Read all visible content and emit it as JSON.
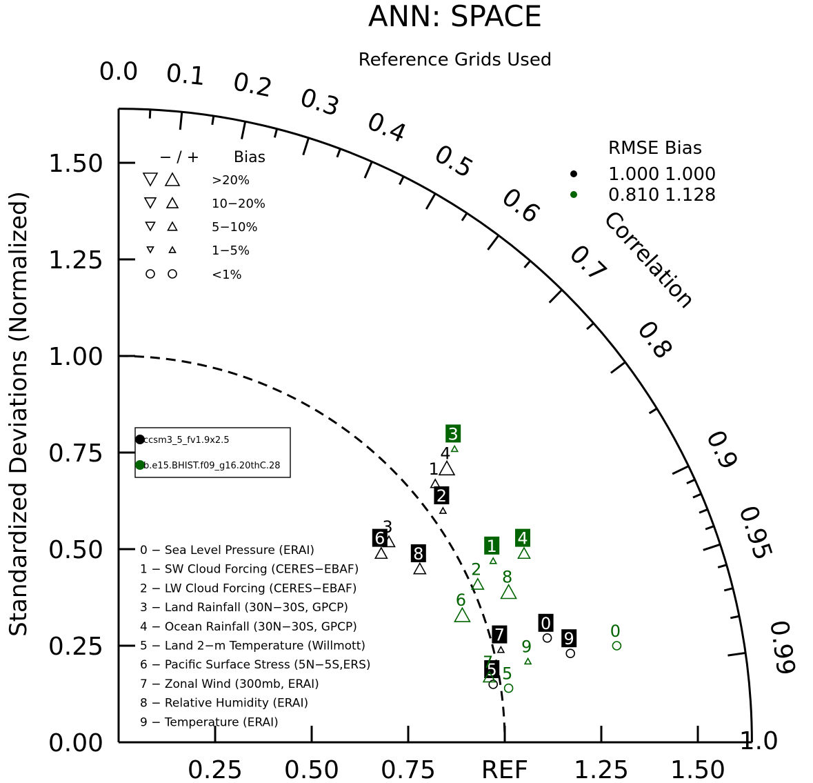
{
  "chart_data": {
    "type": "scatter",
    "title": "ANN: SPACE",
    "subtitle": "Reference Grids Used",
    "ylabel": "Standardized Deviations (Normalized)",
    "arc_label": "Correlation",
    "ref_label": "REF",
    "ylim": [
      0,
      1.65
    ],
    "xlim": [
      0,
      1.65
    ],
    "y_tick_labels": [
      "0.00",
      "0.25",
      "0.50",
      "0.75",
      "1.00",
      "1.25",
      "1.50"
    ],
    "x_tick_labels": [
      "0.25",
      "0.50",
      "0.75",
      "REF",
      "1.25",
      "1.50"
    ],
    "correlation_ticks": [
      "0.0",
      "0.1",
      "0.2",
      "0.3",
      "0.4",
      "0.5",
      "0.6",
      "0.7",
      "0.8",
      "0.9",
      "0.95",
      "0.99",
      "1.0"
    ],
    "bias_legend": {
      "header_sign": "− / +",
      "header_label": "Bias",
      "rows": [
        "&gt;20%",
        "10−20%",
        "5−10%",
        "1−5%",
        "&lt;1%"
      ]
    },
    "stats_legend": {
      "header": "RMSE  Bias",
      "rows": [
        {
          "rmse": "1.000",
          "bias": "1.000",
          "color": "#000000"
        },
        {
          "rmse": "0.810",
          "bias": "1.128",
          "color": "#006400"
        }
      ]
    },
    "case_legend": [
      {
        "name": "ccsm3_5_fv1.9x2.5",
        "color": "#000000"
      },
      {
        "name": "b.e15.BHIST.f09_g16.20thC.28",
        "color": "#006400"
      }
    ],
    "variables": [
      "0 − Sea Level Pressure (ERAI)",
      "1 − SW Cloud Forcing (CERES−EBAF)",
      "2 − LW Cloud Forcing (CERES−EBAF)",
      "3 − Land Rainfall (30N−30S, GPCP)",
      "4 − Ocean Rainfall (30N−30S, GPCP)",
      "5 − Land 2−m Temperature (Willmott)",
      "6 − Pacific Surface Stress (5N−5S,ERS)",
      "7 − Zonal Wind (300mb, ERAI)",
      "8 − Relative Humidity (ERAI)",
      "9 − Temperature (ERAI)"
    ],
    "series": [
      {
        "name": "ccsm3_5_fv1.9x2.5",
        "color": "#000000",
        "points": [
          {
            "label": "0",
            "x": 1.11,
            "y": 0.27,
            "marker": "circle",
            "boxed": true
          },
          {
            "label": "1",
            "x": 0.82,
            "y": 0.67,
            "marker": "triangle-up",
            "size": "small",
            "boxed": false
          },
          {
            "label": "2",
            "x": 0.84,
            "y": 0.6,
            "marker": "triangle-up",
            "size": "tiny",
            "boxed": true
          },
          {
            "label": "3",
            "x": 0.7,
            "y": 0.52,
            "marker": "triangle-up",
            "size": "medium",
            "boxed": false
          },
          {
            "label": "4",
            "x": 0.85,
            "y": 0.71,
            "marker": "triangle-up",
            "size": "large",
            "boxed": false
          },
          {
            "label": "5",
            "x": 0.97,
            "y": 0.15,
            "marker": "circle",
            "boxed": true
          },
          {
            "label": "6",
            "x": 0.68,
            "y": 0.49,
            "marker": "triangle-up",
            "size": "medium",
            "boxed": true
          },
          {
            "label": "7",
            "x": 0.99,
            "y": 0.24,
            "marker": "triangle-up",
            "size": "tiny",
            "boxed": true
          },
          {
            "label": "8",
            "x": 0.78,
            "y": 0.45,
            "marker": "triangle-up",
            "size": "medium",
            "boxed": true
          },
          {
            "label": "9",
            "x": 1.17,
            "y": 0.23,
            "marker": "circle",
            "boxed": true
          }
        ]
      },
      {
        "name": "b.e15.BHIST.f09_g16.20thC.28",
        "color": "#006400",
        "points": [
          {
            "label": "0",
            "x": 1.29,
            "y": 0.25,
            "marker": "circle",
            "boxed": false
          },
          {
            "label": "1",
            "x": 0.97,
            "y": 0.47,
            "marker": "triangle-up",
            "size": "tiny",
            "boxed": true
          },
          {
            "label": "2",
            "x": 0.93,
            "y": 0.41,
            "marker": "triangle-up",
            "size": "medium",
            "boxed": false
          },
          {
            "label": "3",
            "x": 0.87,
            "y": 0.76,
            "marker": "triangle-up",
            "size": "tiny",
            "boxed": true
          },
          {
            "label": "4",
            "x": 1.05,
            "y": 0.49,
            "marker": "triangle-up",
            "size": "medium",
            "boxed": true
          },
          {
            "label": "5",
            "x": 1.01,
            "y": 0.14,
            "marker": "circle",
            "boxed": false
          },
          {
            "label": "6",
            "x": 0.89,
            "y": 0.33,
            "marker": "triangle-up",
            "size": "large",
            "boxed": false
          },
          {
            "label": "7",
            "x": 0.96,
            "y": 0.17,
            "marker": "triangle-up",
            "size": "medium",
            "boxed": false
          },
          {
            "label": "8",
            "x": 1.01,
            "y": 0.39,
            "marker": "triangle-up",
            "size": "large",
            "boxed": false
          },
          {
            "label": "9",
            "x": 1.06,
            "y": 0.21,
            "marker": "triangle-up",
            "size": "tiny",
            "boxed": false
          }
        ]
      }
    ]
  }
}
